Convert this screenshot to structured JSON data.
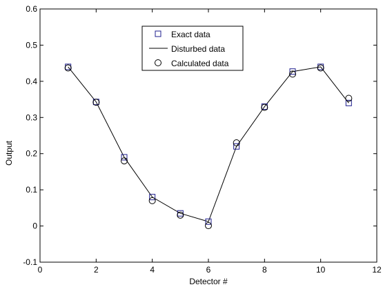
{
  "chart_data": {
    "type": "line",
    "xlabel": "Detector #",
    "ylabel": "Output",
    "xlim": [
      0,
      12
    ],
    "ylim": [
      -0.1,
      0.6
    ],
    "xticks": [
      "0",
      "2",
      "4",
      "6",
      "8",
      "10",
      "12"
    ],
    "yticks": [
      "-0.1",
      "0",
      "0.1",
      "0.2",
      "0.3",
      "0.4",
      "0.5",
      "0.6"
    ],
    "grid": false,
    "legend_position": "top-center",
    "x": [
      1,
      2,
      3,
      4,
      5,
      6,
      7,
      8,
      9,
      10,
      11
    ],
    "series": [
      {
        "name": "Exact data",
        "marker": "square",
        "color": "#1c1c8c",
        "values": [
          0.44,
          0.343,
          0.19,
          0.08,
          0.035,
          0.012,
          0.22,
          0.33,
          0.427,
          0.44,
          0.34
        ]
      },
      {
        "name": "Disturbed data",
        "marker": "line",
        "color": "#000000",
        "values": [
          0.44,
          0.343,
          0.19,
          0.08,
          0.035,
          0.012,
          0.22,
          0.33,
          0.427,
          0.44,
          0.34
        ]
      },
      {
        "name": "Calculated data",
        "marker": "circle",
        "color": "#000000",
        "values": [
          0.437,
          0.342,
          0.18,
          0.07,
          0.03,
          0.001,
          0.23,
          0.328,
          0.42,
          0.437,
          0.353
        ]
      }
    ]
  }
}
